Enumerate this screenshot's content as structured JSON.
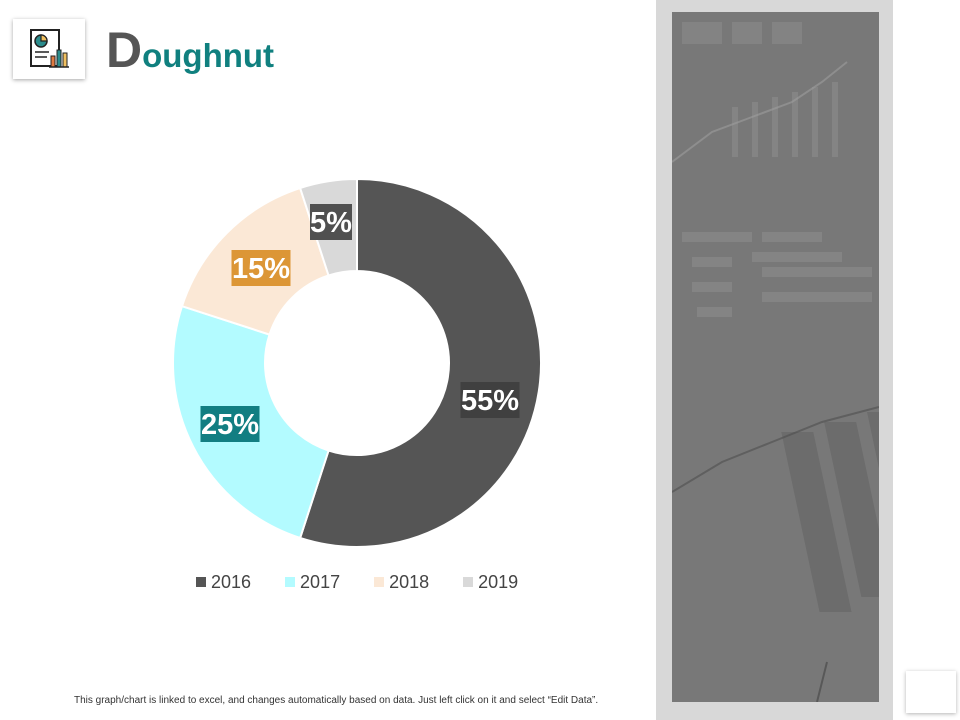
{
  "header": {
    "title_first": "D",
    "title_rest": "oughnut",
    "icon": "report-chart-icon"
  },
  "chart_data": {
    "type": "pie",
    "subtype": "doughnut",
    "categories": [
      "2016",
      "2017",
      "2018",
      "2019"
    ],
    "values": [
      55,
      25,
      15,
      5
    ],
    "labels": [
      "55%",
      "25%",
      "15%",
      "5%"
    ],
    "colors": [
      "#555555",
      "#b3fbff",
      "#fbe8d6",
      "#d9d9d9"
    ],
    "label_colors": [
      "#404040",
      "#127e82",
      "#dc9636",
      "#505050"
    ],
    "legend_position": "bottom",
    "title": ""
  },
  "footnote": "This graph/chart is linked to excel, and changes automatically based on data. Just left click on it and select “Edit Data”."
}
